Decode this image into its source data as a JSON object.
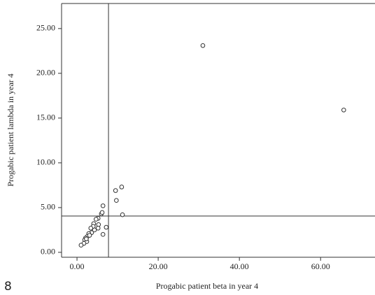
{
  "chart_data": {
    "type": "scatter",
    "x_label": "Progabic patient beta in year 4",
    "y_label": "Progabic patient lambda in year 4",
    "annotation": "8",
    "x": [
      65.7,
      31.0,
      11.0,
      9.5,
      9.7,
      11.2,
      6.4,
      6.0,
      6.2,
      7.2,
      6.4,
      5.2,
      5.3,
      4.7,
      4.1,
      4.0,
      3.4,
      4.3,
      3.6,
      2.9,
      2.6,
      3.1,
      2.1,
      1.9,
      2.4,
      1.7,
      1.0,
      2.3,
      5.2
    ],
    "values": [
      15.9,
      23.1,
      7.3,
      6.9,
      5.8,
      4.2,
      5.2,
      4.3,
      4.45,
      2.8,
      2.0,
      3.8,
      3.1,
      3.7,
      3.2,
      2.9,
      2.7,
      2.5,
      2.2,
      2.1,
      1.8,
      1.9,
      1.6,
      1.4,
      1.2,
      1.0,
      0.8,
      1.5,
      2.7
    ],
    "color": "#333333",
    "xlim": [
      -3.8,
      73.4
    ],
    "ylim": [
      -0.55,
      27.8
    ],
    "xticks": [
      {
        "value": 0,
        "label": "0.00"
      },
      {
        "value": 20,
        "label": "20.00"
      },
      {
        "value": 40,
        "label": "40.00"
      },
      {
        "value": 60,
        "label": "60.00"
      }
    ],
    "yticks": [
      {
        "value": 0,
        "label": "0.00"
      },
      {
        "value": 5,
        "label": "5.00"
      },
      {
        "value": 10,
        "label": "10.00"
      },
      {
        "value": 15,
        "label": "15.00"
      },
      {
        "value": 20,
        "label": "20.00"
      },
      {
        "value": 25,
        "label": "25.00"
      }
    ],
    "reference_x": 7.76,
    "reference_y": 4.06,
    "grid": false
  }
}
